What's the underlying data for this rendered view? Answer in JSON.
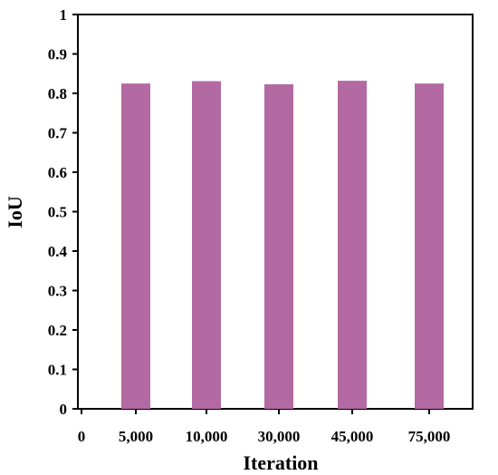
{
  "chart_data": {
    "type": "bar",
    "title": "",
    "xlabel": "Iteration",
    "ylabel": "IoU",
    "x_origin_label": "0",
    "categories": [
      "5,000",
      "10,000",
      "30,000",
      "45,000",
      "75,000"
    ],
    "values": [
      0.825,
      0.831,
      0.823,
      0.832,
      0.825
    ],
    "ylim": [
      0,
      1
    ],
    "yticks": [
      "0",
      "0.1",
      "0.2",
      "0.3",
      "0.4",
      "0.5",
      "0.6",
      "0.7",
      "0.8",
      "0.9",
      "1"
    ],
    "bar_color": "#b36aa3",
    "grid": false,
    "legend": "none"
  }
}
